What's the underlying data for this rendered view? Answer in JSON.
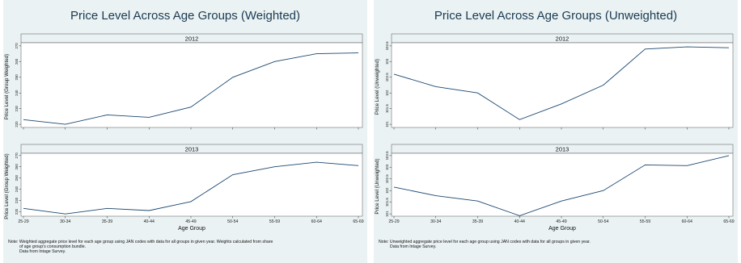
{
  "colors": {
    "background": "#eaf2f3",
    "plot_bg": "#ffffff",
    "line": "#1a476f",
    "title": "#1b3a52"
  },
  "panels": [
    {
      "id": "weighted",
      "title": "Price Level Across Age Groups (Weighted)",
      "ylabel": "Price Level (Group Weighted)",
      "xlabel": "Age Group",
      "note": [
        "Note: Weighted aggregate price level for each age group using JAN codes with data for all groups in given year. Weights calculated from share",
        "of age group's consumption bundle.",
        "Data from Intage Survey."
      ]
    },
    {
      "id": "unweighted",
      "title": "Price Level Across Age Groups (Unweighted)",
      "ylabel": "Price Level (Unweighted)",
      "xlabel": "Age Group",
      "note": [
        "Note: Unweighted aggregate price level for each age group using JAN codes with data for all groups in given year.",
        "Data from Intage Survey."
      ]
    }
  ],
  "chart_data": [
    {
      "type": "line",
      "title": "Price Level Across Age Groups (Weighted)",
      "xlabel": "Age Group",
      "ylabel": "Price Level (Group Weighted)",
      "categories": [
        "25-29",
        "30-34",
        "35-39",
        "40-44",
        "45-49",
        "50-54",
        "55-59",
        "60-64",
        "65-69"
      ],
      "facets": [
        {
          "label": "2012",
          "yticks": [
            "220",
            "230",
            "240",
            "250",
            "260",
            "270"
          ],
          "ylim": [
            218,
            272
          ],
          "values": [
            223,
            220,
            226,
            224.5,
            231,
            250,
            260,
            265,
            265.5
          ]
        },
        {
          "label": "2013",
          "yticks": [
            "220",
            "230",
            "240",
            "250",
            "260",
            "270"
          ],
          "ylim": [
            216,
            272
          ],
          "values": [
            223,
            218,
            223,
            221,
            229,
            253,
            260,
            264,
            261
          ]
        }
      ]
    },
    {
      "type": "line",
      "title": "Price Level Across Age Groups (Unweighted)",
      "xlabel": "Age Group",
      "ylabel": "Price Level (Unweighted)",
      "categories": [
        "25-29",
        "30-34",
        "35-39",
        "40-44",
        "45-49",
        "50-54",
        "55-59",
        "60-64",
        "65-69"
      ],
      "facets": [
        {
          "label": "2012",
          "yticks": [
            "101",
            "101.5",
            "102",
            "102.5",
            "103",
            "103.5"
          ],
          "ylim": [
            100.9,
            103.6
          ],
          "values": [
            102.6,
            102.2,
            102.0,
            101.15,
            101.65,
            102.25,
            103.4,
            103.47,
            103.44
          ]
        },
        {
          "label": "2013",
          "yticks": [
            "101",
            "101.5",
            "102",
            "102.5",
            "103",
            "103.5"
          ],
          "ylim": [
            100.9,
            103.6
          ],
          "values": [
            102.15,
            101.78,
            101.55,
            100.92,
            101.55,
            102.0,
            103.1,
            103.07,
            103.5
          ]
        }
      ]
    }
  ]
}
